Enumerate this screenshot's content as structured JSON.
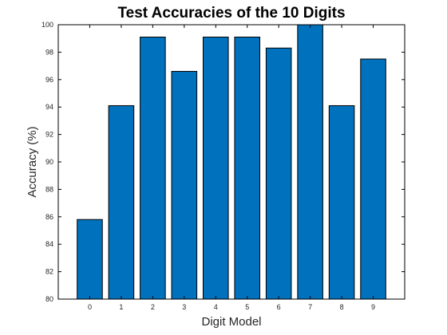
{
  "chart_data": {
    "type": "bar",
    "title": "Test Accuracies of the 10 Digits",
    "xlabel": "Digit Model",
    "ylabel": "Accuracy (%)",
    "categories": [
      "0",
      "1",
      "2",
      "3",
      "4",
      "5",
      "6",
      "7",
      "8",
      "9"
    ],
    "values": [
      85.8,
      94.1,
      99.1,
      96.6,
      99.1,
      99.1,
      98.3,
      100,
      94.1,
      97.5
    ],
    "ylim": [
      80,
      100
    ],
    "yticks": [
      "80",
      "82",
      "84",
      "86",
      "88",
      "90",
      "92",
      "94",
      "96",
      "98",
      "100"
    ],
    "grid": false,
    "bar_color": "#0072BD"
  }
}
